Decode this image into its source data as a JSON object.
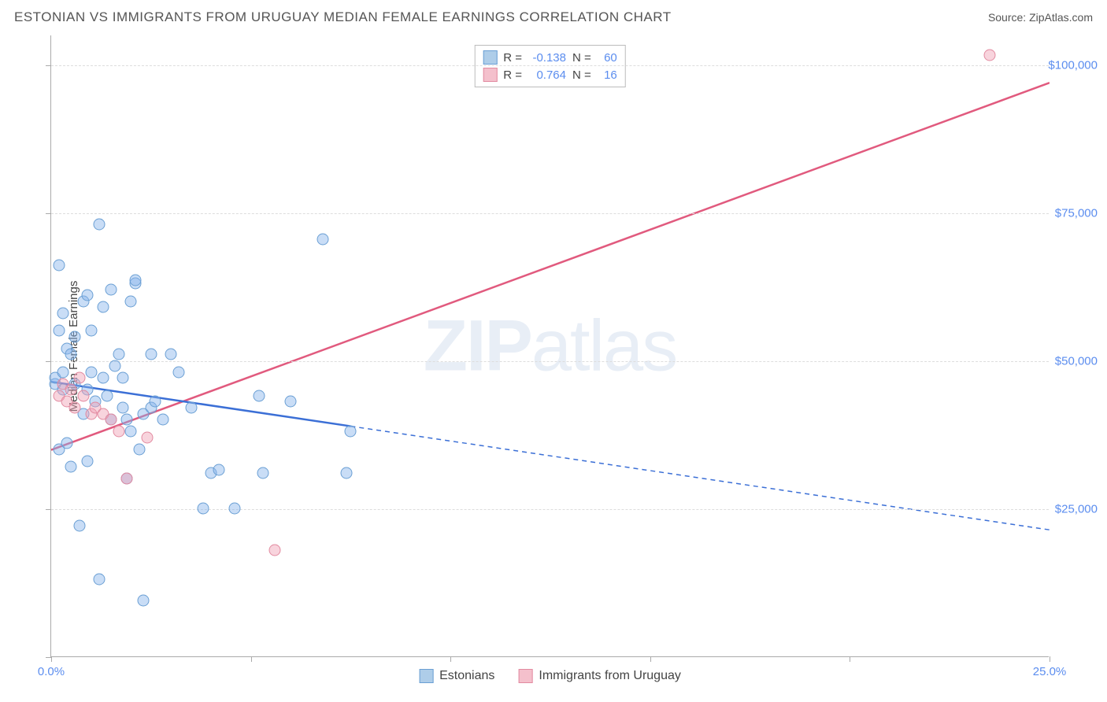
{
  "header": {
    "title": "ESTONIAN VS IMMIGRANTS FROM URUGUAY MEDIAN FEMALE EARNINGS CORRELATION CHART",
    "source_prefix": "Source: ",
    "source_name": "ZipAtlas.com"
  },
  "chart": {
    "type": "scatter",
    "y_axis_label": "Median Female Earnings",
    "background_color": "#ffffff",
    "grid_color": "#dddddd",
    "axis_color": "#aaaaaa",
    "label_color": "#5b8def",
    "xlim": [
      0,
      25
    ],
    "ylim": [
      0,
      105000
    ],
    "x_ticks": [
      0,
      5,
      10,
      15,
      20,
      25
    ],
    "x_tick_labels": {
      "0": "0.0%",
      "25": "25.0%"
    },
    "y_gridlines": [
      25000,
      50000,
      75000,
      100000
    ],
    "y_tick_labels": {
      "25000": "$25,000",
      "50000": "$50,000",
      "75000": "$75,000",
      "100000": "$100,000"
    },
    "watermark": {
      "bold": "ZIP",
      "light": "atlas"
    },
    "legend_top": {
      "rows": [
        {
          "swatch_fill": "#aecde9",
          "swatch_border": "#6a9fd4",
          "r_label": "R =",
          "r": "-0.138",
          "n_label": "N =",
          "n": "60"
        },
        {
          "swatch_fill": "#f4c0cc",
          "swatch_border": "#e28aa0",
          "r_label": "R =",
          "r": "0.764",
          "n_label": "N =",
          "n": "16"
        }
      ]
    },
    "legend_bottom": {
      "items": [
        {
          "swatch_fill": "#aecde9",
          "swatch_border": "#6a9fd4",
          "label": "Estonians"
        },
        {
          "swatch_fill": "#f4c0cc",
          "swatch_border": "#e28aa0",
          "label": "Immigrants from Uruguay"
        }
      ]
    },
    "series": {
      "estonians": {
        "color_fill": "rgba(135,180,235,0.45)",
        "color_border": "#6a9fd4",
        "marker_size": 15,
        "points": [
          [
            0.1,
            46000
          ],
          [
            0.1,
            47000
          ],
          [
            0.2,
            55000
          ],
          [
            0.2,
            35000
          ],
          [
            0.2,
            66000
          ],
          [
            0.3,
            48000
          ],
          [
            0.3,
            58000
          ],
          [
            0.3,
            45000
          ],
          [
            0.4,
            36000
          ],
          [
            0.4,
            52000
          ],
          [
            0.5,
            32000
          ],
          [
            0.5,
            51000
          ],
          [
            0.6,
            46000
          ],
          [
            0.6,
            54000
          ],
          [
            0.7,
            22000
          ],
          [
            0.8,
            60000
          ],
          [
            0.8,
            41000
          ],
          [
            0.9,
            45000
          ],
          [
            0.9,
            61000
          ],
          [
            0.9,
            33000
          ],
          [
            1.0,
            48000
          ],
          [
            1.0,
            55000
          ],
          [
            1.1,
            43000
          ],
          [
            1.2,
            73000
          ],
          [
            1.2,
            13000
          ],
          [
            1.3,
            47000
          ],
          [
            1.3,
            59000
          ],
          [
            1.4,
            44000
          ],
          [
            1.5,
            40000
          ],
          [
            1.5,
            62000
          ],
          [
            1.6,
            49000
          ],
          [
            1.7,
            51000
          ],
          [
            1.8,
            42000
          ],
          [
            1.8,
            47000
          ],
          [
            1.9,
            40000
          ],
          [
            1.9,
            30000
          ],
          [
            2.0,
            60000
          ],
          [
            2.0,
            38000
          ],
          [
            2.1,
            63000
          ],
          [
            2.1,
            63500
          ],
          [
            2.2,
            35000
          ],
          [
            2.3,
            41000
          ],
          [
            2.3,
            9500
          ],
          [
            2.5,
            42000
          ],
          [
            2.5,
            51000
          ],
          [
            2.6,
            43000
          ],
          [
            2.8,
            40000
          ],
          [
            3.0,
            51000
          ],
          [
            3.2,
            48000
          ],
          [
            3.5,
            42000
          ],
          [
            3.8,
            25000
          ],
          [
            4.0,
            31000
          ],
          [
            4.2,
            31500
          ],
          [
            4.6,
            25000
          ],
          [
            5.2,
            44000
          ],
          [
            5.3,
            31000
          ],
          [
            6.0,
            43000
          ],
          [
            6.8,
            70500
          ],
          [
            7.4,
            31000
          ],
          [
            7.5,
            38000
          ]
        ],
        "trend": {
          "color": "#3b6fd6",
          "width": 2.5,
          "solid_end_x": 7.5,
          "start": [
            0,
            46500
          ],
          "end": [
            25,
            21500
          ]
        }
      },
      "uruguay": {
        "color_fill": "rgba(240,160,180,0.45)",
        "color_border": "#e28aa0",
        "marker_size": 15,
        "points": [
          [
            0.2,
            44000
          ],
          [
            0.3,
            46000
          ],
          [
            0.4,
            43000
          ],
          [
            0.5,
            45000
          ],
          [
            0.6,
            42000
          ],
          [
            0.7,
            47000
          ],
          [
            0.8,
            44000
          ],
          [
            1.0,
            41000
          ],
          [
            1.1,
            42000
          ],
          [
            1.3,
            41000
          ],
          [
            1.5,
            40000
          ],
          [
            1.7,
            38000
          ],
          [
            1.9,
            30000
          ],
          [
            2.4,
            37000
          ],
          [
            5.6,
            18000
          ],
          [
            23.5,
            101500
          ]
        ],
        "trend": {
          "color": "#e15a7e",
          "width": 2.5,
          "start": [
            0,
            35000
          ],
          "end": [
            25,
            97000
          ]
        }
      }
    }
  }
}
